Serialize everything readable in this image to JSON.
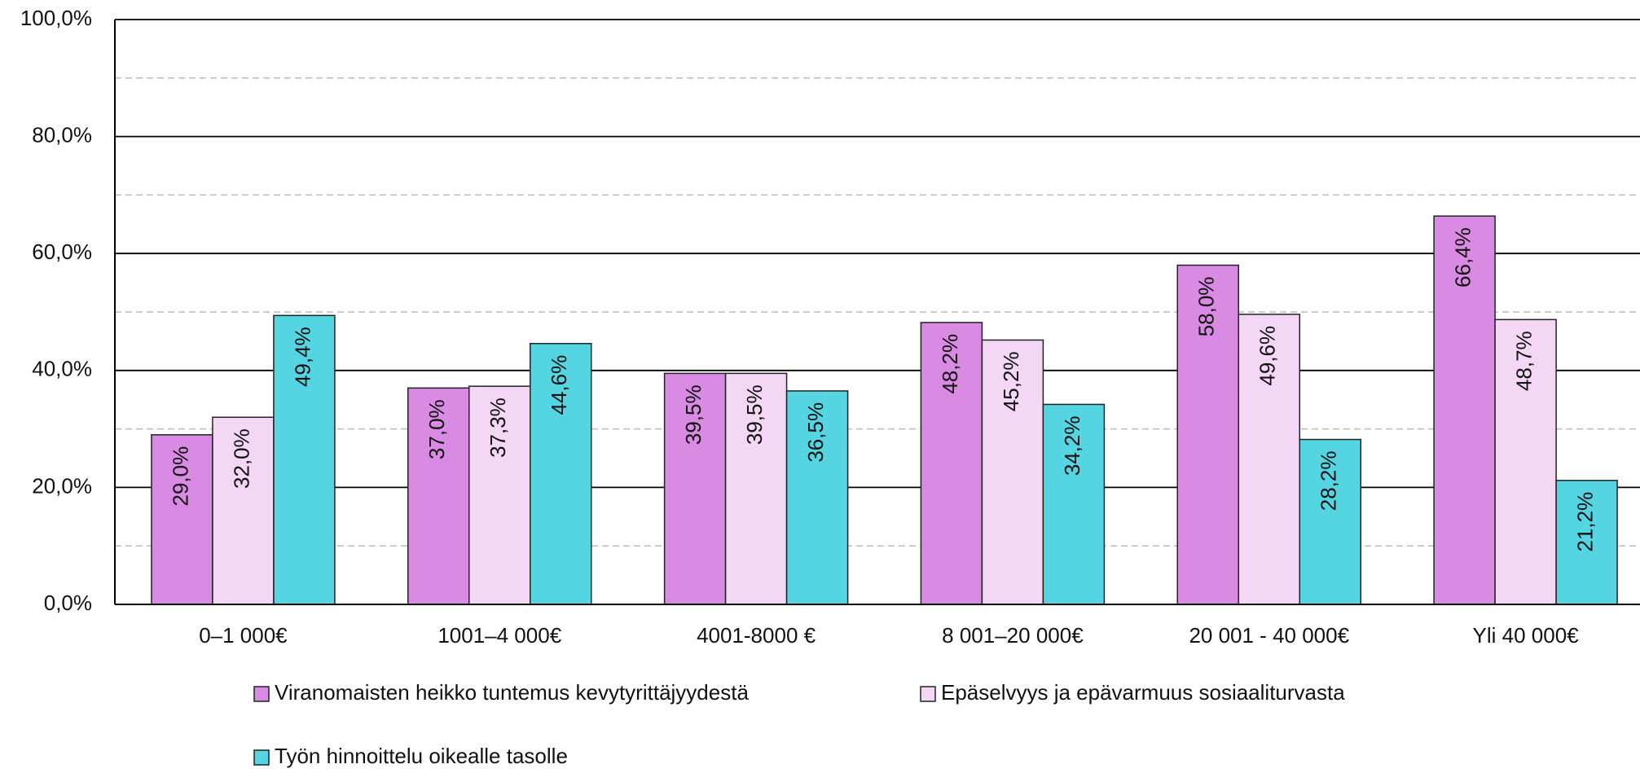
{
  "chart_data": {
    "type": "bar",
    "categories": [
      "0–1 000€",
      "1001–4 000€",
      "4001-8000 €",
      "8 001–20 000€",
      "20 001 - 40 000€",
      "Yli 40 000€"
    ],
    "series": [
      {
        "name": "Viranomaisten heikko tuntemus kevytyrittäjyydestä",
        "color": "#d98ae3",
        "values": [
          29.0,
          37.0,
          39.5,
          48.2,
          58.0,
          66.4
        ],
        "value_labels": [
          "29,0%",
          "37,0%",
          "39,5%",
          "48,2%",
          "58,0%",
          "66,4%"
        ]
      },
      {
        "name": "Epäselvyys ja epävarmuus sosiaaliturvasta",
        "color": "#f4d7f4",
        "values": [
          32.0,
          37.3,
          39.5,
          45.2,
          49.6,
          48.7
        ],
        "value_labels": [
          "32,0%",
          "37,3%",
          "39,5%",
          "45,2%",
          "49,6%",
          "48,7%"
        ]
      },
      {
        "name": "Työn hinnoittelu oikealle tasolle",
        "color": "#55d5e2",
        "values": [
          49.4,
          44.6,
          36.5,
          34.2,
          28.2,
          21.2
        ],
        "value_labels": [
          "49,4%",
          "44,6%",
          "36,5%",
          "34,2%",
          "28,2%",
          "21,2%"
        ]
      }
    ],
    "ylim": [
      0,
      100
    ],
    "yticks": [
      {
        "value": 0,
        "label": "0,0%"
      },
      {
        "value": 20,
        "label": "20,0%"
      },
      {
        "value": 40,
        "label": "40,0%"
      },
      {
        "value": 60,
        "label": "60,0%"
      },
      {
        "value": 80,
        "label": "80,0%"
      },
      {
        "value": 100,
        "label": "100,0%"
      }
    ],
    "grid": true,
    "legend": "bottom"
  }
}
